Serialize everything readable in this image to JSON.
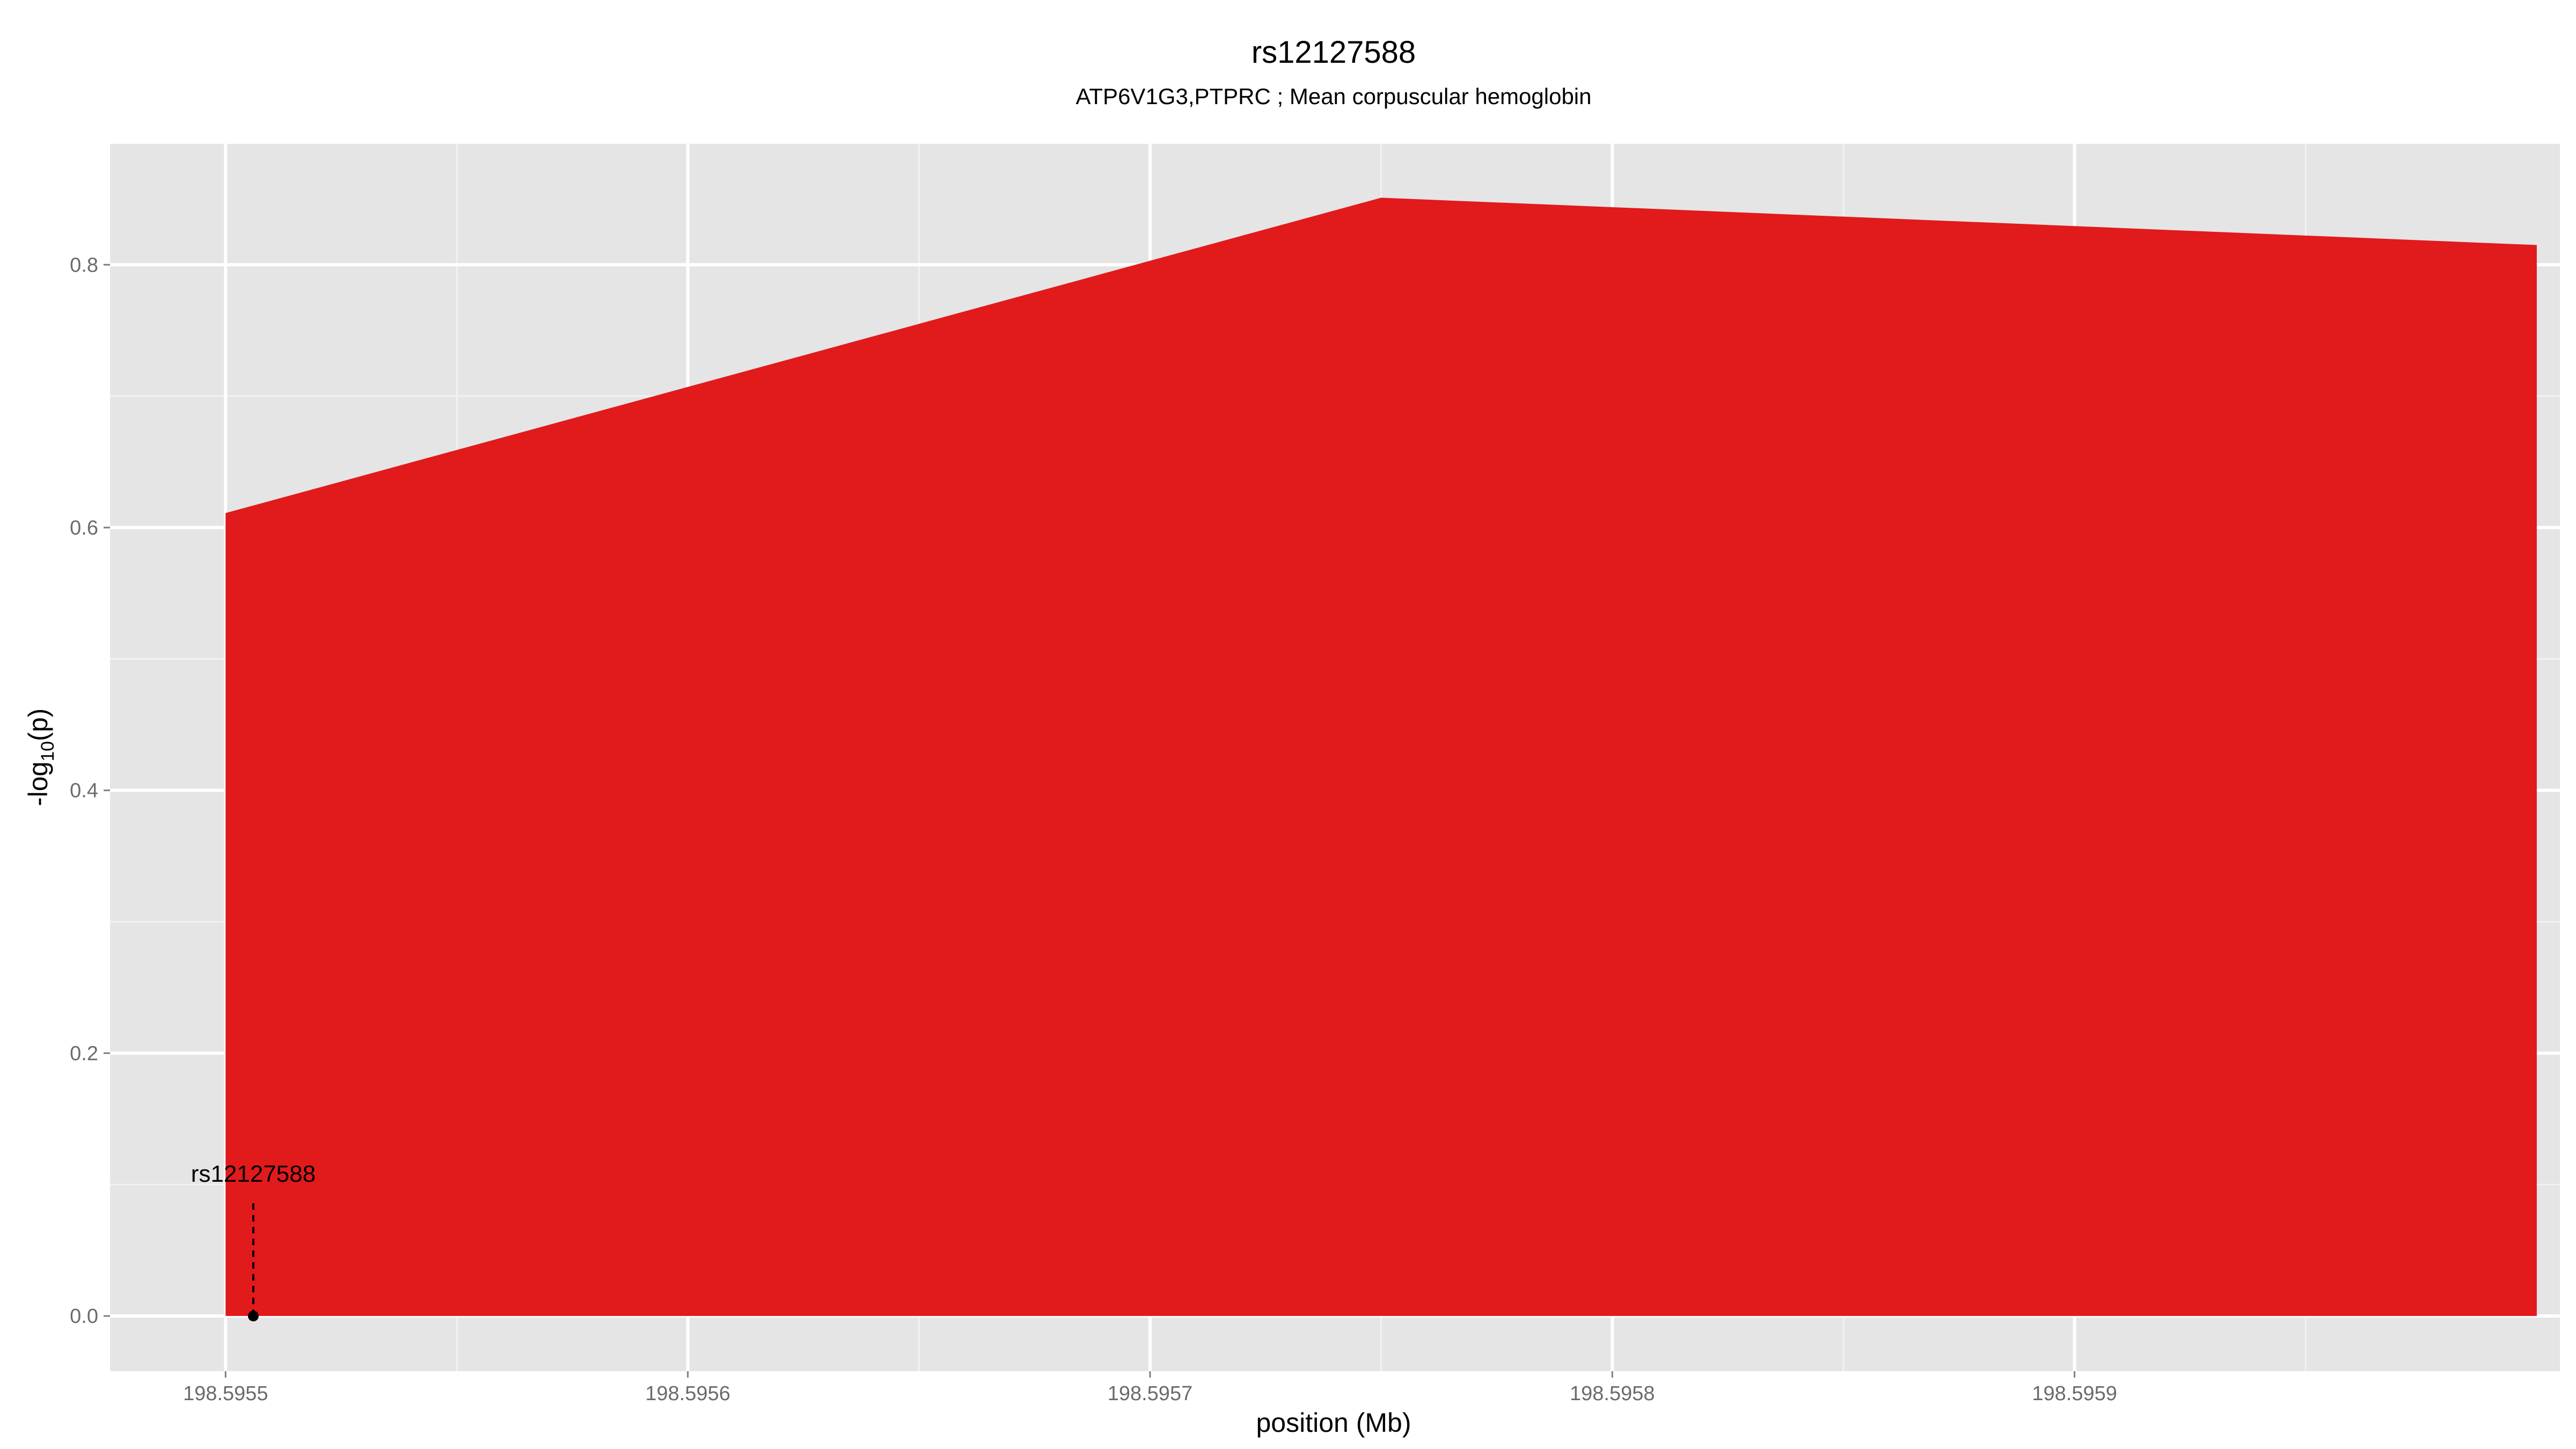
{
  "chart_data": {
    "type": "area",
    "title": "rs12127588",
    "subtitle": "ATP6V1G3,PTPRC ; Mean corpuscular hemoglobin",
    "xlabel": "position (Mb)",
    "ylabel_main": "-log",
    "ylabel_sub": "10",
    "ylabel_tail": "(p)",
    "xlim": [
      198.595475,
      198.596005
    ],
    "ylim": [
      -0.042,
      0.892
    ],
    "x_ticks": [
      198.5955,
      198.5956,
      198.5957,
      198.5958,
      198.5959
    ],
    "x_tick_labels": [
      "198.5955",
      "198.5956",
      "198.5957",
      "198.5958",
      "198.5959"
    ],
    "y_ticks": [
      0.0,
      0.2,
      0.4,
      0.6,
      0.8
    ],
    "y_tick_labels": [
      "0.0",
      "0.2",
      "0.4",
      "0.6",
      "0.8"
    ],
    "grid": true,
    "series": [
      {
        "x": [
          198.5955,
          198.59575,
          198.596
        ],
        "y": [
          0.611,
          0.851,
          0.815
        ],
        "color": "#e11a1c"
      }
    ],
    "annotation": {
      "label": "rs12127588",
      "x": 198.595506,
      "y": 0.0,
      "label_y": 0.085
    },
    "colors": {
      "panel": "#e5e5e5",
      "grid_major": "#ffffff",
      "grid_minor": "#f2f2f2",
      "area": "#e11a1c",
      "annotation": "#000000"
    }
  }
}
